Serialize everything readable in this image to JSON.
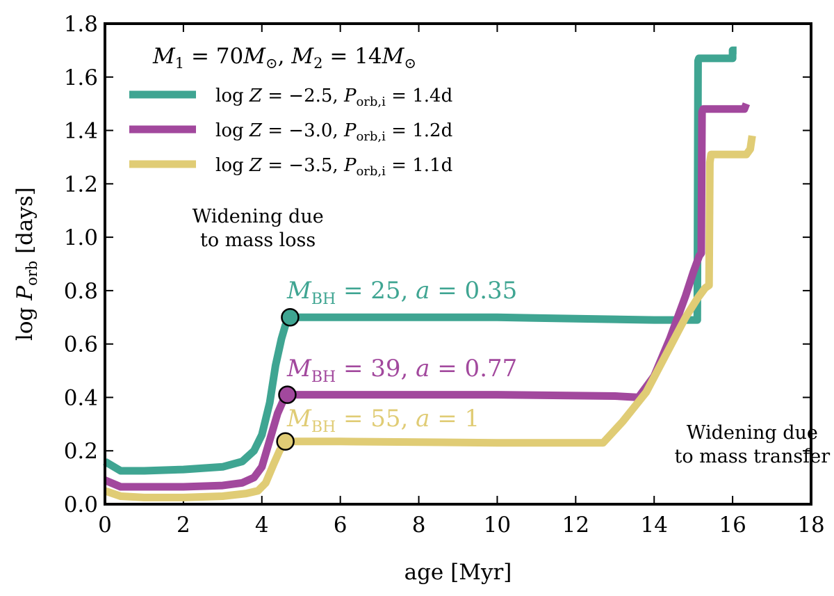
{
  "chart_data": {
    "type": "line",
    "title": "",
    "xlabel": "age [Myr]",
    "ylabel": "log P_orb [days]",
    "xlim": [
      0,
      18
    ],
    "ylim": [
      0.0,
      1.8
    ],
    "xticks": [
      "0",
      "2",
      "4",
      "6",
      "8",
      "10",
      "12",
      "14",
      "16",
      "18"
    ],
    "yticks": [
      "0.0",
      "0.2",
      "0.4",
      "0.6",
      "0.8",
      "1.0",
      "1.2",
      "1.4",
      "1.6",
      "1.8"
    ],
    "legend_title": "M_1 = 70M_sun, M_2 = 14M_sun",
    "series": [
      {
        "name": "log Z = −2.5, P_orb,i = 1.4d",
        "color": "#3fa592",
        "x": [
          0.0,
          0.4,
          1.0,
          2.0,
          3.0,
          3.5,
          3.8,
          4.0,
          4.2,
          4.35,
          4.5,
          4.6,
          4.72,
          6.0,
          10.0,
          14.0,
          15.1,
          15.12,
          15.14,
          16.0,
          16.0,
          16.1
        ],
        "y": [
          0.16,
          0.125,
          0.125,
          0.13,
          0.14,
          0.16,
          0.2,
          0.26,
          0.38,
          0.52,
          0.62,
          0.67,
          0.7,
          0.7,
          0.7,
          0.69,
          0.69,
          1.66,
          1.67,
          1.67,
          1.7,
          1.7
        ],
        "endpoint": {
          "x": 4.72,
          "y": 0.7
        },
        "bh_label": "M_BH = 25, a = 0.35"
      },
      {
        "name": "log Z = −3.0, P_orb,i = 1.2d",
        "color": "#a2489d",
        "x": [
          0.0,
          0.4,
          1.0,
          2.0,
          3.0,
          3.5,
          3.8,
          4.0,
          4.2,
          4.4,
          4.55,
          4.65,
          6.0,
          10.0,
          13.0,
          13.6,
          14.0,
          14.4,
          14.8,
          15.0,
          15.15,
          15.2,
          15.22,
          15.25,
          16.2,
          16.3,
          16.35
        ],
        "y": [
          0.09,
          0.065,
          0.065,
          0.065,
          0.07,
          0.08,
          0.1,
          0.14,
          0.24,
          0.34,
          0.39,
          0.41,
          0.41,
          0.41,
          0.405,
          0.4,
          0.48,
          0.62,
          0.78,
          0.87,
          0.93,
          0.94,
          1.47,
          1.48,
          1.48,
          1.48,
          1.5
        ],
        "endpoint": {
          "x": 4.65,
          "y": 0.41
        },
        "bh_label": "M_BH = 39, a = 0.77"
      },
      {
        "name": "log Z = −3.5, P_orb,i = 1.1d",
        "color": "#e0cc75",
        "x": [
          0.0,
          0.4,
          1.0,
          2.0,
          3.0,
          3.6,
          3.9,
          4.1,
          4.3,
          4.45,
          4.6,
          6.0,
          10.0,
          12.7,
          13.2,
          13.8,
          14.3,
          14.8,
          15.1,
          15.3,
          15.4,
          15.42,
          15.45,
          16.35,
          16.45,
          16.5
        ],
        "y": [
          0.05,
          0.03,
          0.025,
          0.025,
          0.03,
          0.04,
          0.05,
          0.08,
          0.15,
          0.2,
          0.235,
          0.235,
          0.23,
          0.23,
          0.31,
          0.42,
          0.56,
          0.7,
          0.77,
          0.81,
          0.82,
          1.28,
          1.31,
          1.31,
          1.33,
          1.38
        ],
        "endpoint": {
          "x": 4.6,
          "y": 0.235
        },
        "bh_label": "M_BH = 55, a = 1"
      }
    ],
    "annotations": [
      {
        "lines": [
          "Widening due",
          "to mass loss"
        ],
        "x": 3.9,
        "y": 1.055
      },
      {
        "lines": [
          "Widening due",
          "to mass transfer"
        ],
        "x": 16.5,
        "y": 0.245
      }
    ]
  }
}
